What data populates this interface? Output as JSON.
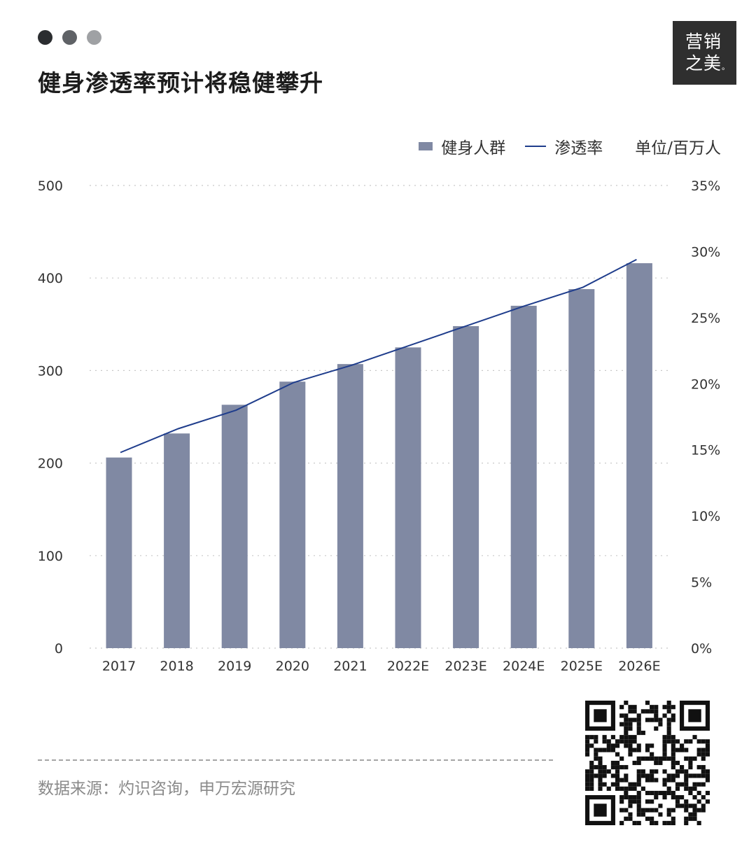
{
  "header": {
    "title": "健身渗透率预计将稳健攀升",
    "dots": [
      "#2b2d30",
      "#5f6266",
      "#9fa1a4"
    ]
  },
  "logo": {
    "line1": "营销",
    "line2": "之美",
    "mark": "。"
  },
  "legend": {
    "bar_label": "健身人群",
    "line_label": "渗透率",
    "unit_label": "单位/百万人"
  },
  "source": "数据来源：灼识咨询，申万宏源研究",
  "colors": {
    "bar": "#8089a3",
    "line": "#1f3d8c",
    "grid": "#c8c8c8",
    "text": "#333333"
  },
  "icons": {
    "qr": "qr-code-icon"
  },
  "chart_data": {
    "type": "bar",
    "categories": [
      "2017",
      "2018",
      "2019",
      "2020",
      "2021",
      "2022E",
      "2023E",
      "2024E",
      "2025E",
      "2026E"
    ],
    "series": [
      {
        "name": "健身人群",
        "type": "bar",
        "axis": "left",
        "values": [
          206,
          232,
          263,
          288,
          307,
          325,
          348,
          370,
          388,
          416
        ]
      },
      {
        "name": "渗透率",
        "type": "line",
        "axis": "right",
        "values": [
          14.8,
          16.6,
          18.0,
          20.1,
          21.4,
          22.9,
          24.4,
          25.9,
          27.3,
          29.4
        ]
      }
    ],
    "y_left": {
      "min": 0,
      "max": 500,
      "ticks": [
        0,
        100,
        200,
        300,
        400,
        500
      ],
      "tick_labels": [
        "0",
        "100",
        "200",
        "300",
        "400",
        "500"
      ]
    },
    "y_right": {
      "min": 0,
      "max": 35,
      "ticks": [
        0,
        5,
        10,
        15,
        20,
        25,
        30,
        35
      ],
      "tick_labels": [
        "0%",
        "5%",
        "10%",
        "15%",
        "20%",
        "25%",
        "30%",
        "35%"
      ]
    },
    "grid": true,
    "legend_position": "top-right",
    "unit": "单位/百万人"
  }
}
